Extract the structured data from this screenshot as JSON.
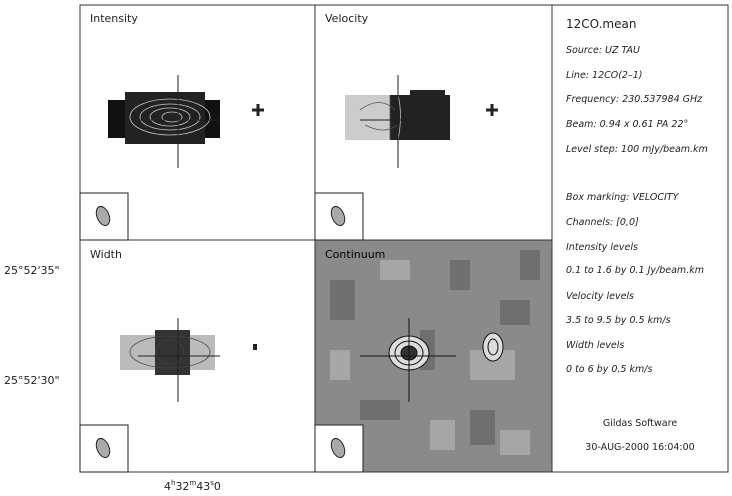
{
  "panels": [
    {
      "title": "Intensity"
    },
    {
      "title": "Velocity"
    },
    {
      "title": "Width"
    },
    {
      "title": "Continuum"
    }
  ],
  "axes": {
    "dec_labels": [
      "25°52'35\"",
      "25°52'30\""
    ],
    "ra_label_parts": [
      "4",
      "h",
      "32",
      "m",
      "43",
      "s",
      "0"
    ]
  },
  "info": {
    "title": "12CO.mean",
    "lines": [
      "Source: UZ TAU",
      "Line: 12CO(2–1)",
      "Frequency: 230.537984 GHz",
      "Beam: 0.94 x 0.61 PA 22°",
      "Level step: 100 mJy/beam.km",
      "Box marking: VELOCITY",
      "Channels: [0,0]",
      "Intensity levels",
      "0.1 to 1.6 by 0.1 Jy/beam.km",
      "Velocity levels",
      "3.5 to 9.5 by 0.5 km/s",
      "Width levels",
      "0 to 6 by 0.5 km/s"
    ],
    "software": "Gildas Software",
    "date": "30-AUG-2000 16:04:00"
  }
}
